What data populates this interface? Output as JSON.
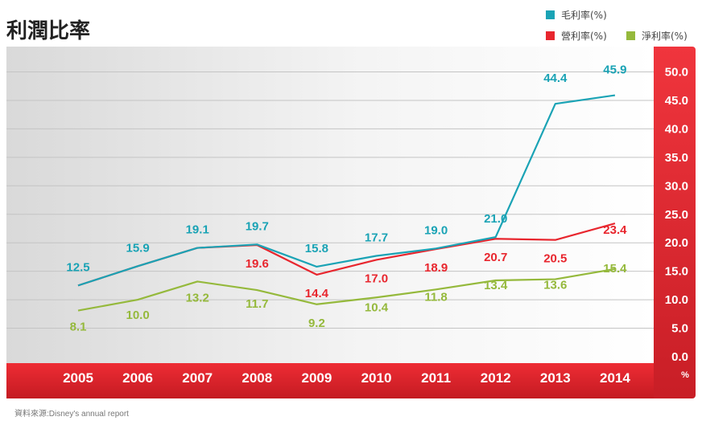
{
  "title": "利潤比率",
  "source": "資料來源:Disney's annual report",
  "legend": [
    {
      "label": "毛利率(%)",
      "color": "#1aa3b5"
    },
    {
      "label": "營利率(%)",
      "color": "#e8262e"
    },
    {
      "label": "淨利率(%)",
      "color": "#95b93c"
    }
  ],
  "chart_data": {
    "type": "line",
    "title": "利潤比率",
    "categories": [
      "2005",
      "2006",
      "2007",
      "2008",
      "2009",
      "2010",
      "2011",
      "2012",
      "2013",
      "2014"
    ],
    "series": [
      {
        "name": "毛利率(%)",
        "color": "#1aa3b5",
        "values": [
          12.5,
          15.9,
          19.1,
          19.7,
          15.8,
          17.7,
          19.0,
          21.0,
          44.4,
          45.9
        ]
      },
      {
        "name": "營利率(%)",
        "color": "#e8262e",
        "values": [
          12.5,
          15.9,
          19.1,
          19.6,
          14.4,
          17.0,
          18.9,
          20.7,
          20.5,
          23.4
        ]
      },
      {
        "name": "淨利率(%)",
        "color": "#95b93c",
        "values": [
          8.1,
          10.0,
          13.2,
          11.7,
          9.2,
          10.4,
          11.8,
          13.4,
          13.6,
          15.4
        ]
      }
    ],
    "labels": [
      {
        "series": 0,
        "text": [
          "12.5",
          "15.9",
          "19.1",
          "19.7",
          "15.8",
          "17.7",
          "19.0",
          "21.0",
          "44.4",
          "45.9"
        ]
      },
      {
        "series": 1,
        "text": [
          "",
          "",
          "",
          "19.6",
          "14.4",
          "17.0",
          "18.9",
          "20.7",
          "20.5",
          "23.4"
        ]
      },
      {
        "series": 2,
        "text": [
          "8.1",
          "10.0",
          "13.2",
          "11.7",
          "9.2",
          "10.4",
          "11.8",
          "13.4",
          "13.6",
          "15.4"
        ]
      }
    ],
    "yticks": [
      "0.0",
      "5.0",
      "10.0",
      "15.0",
      "20.0",
      "25.0",
      "30.0",
      "35.0",
      "40.0",
      "45.0",
      "50.0"
    ],
    "ylim": [
      0,
      50
    ],
    "yunit": "%",
    "grid": true
  }
}
